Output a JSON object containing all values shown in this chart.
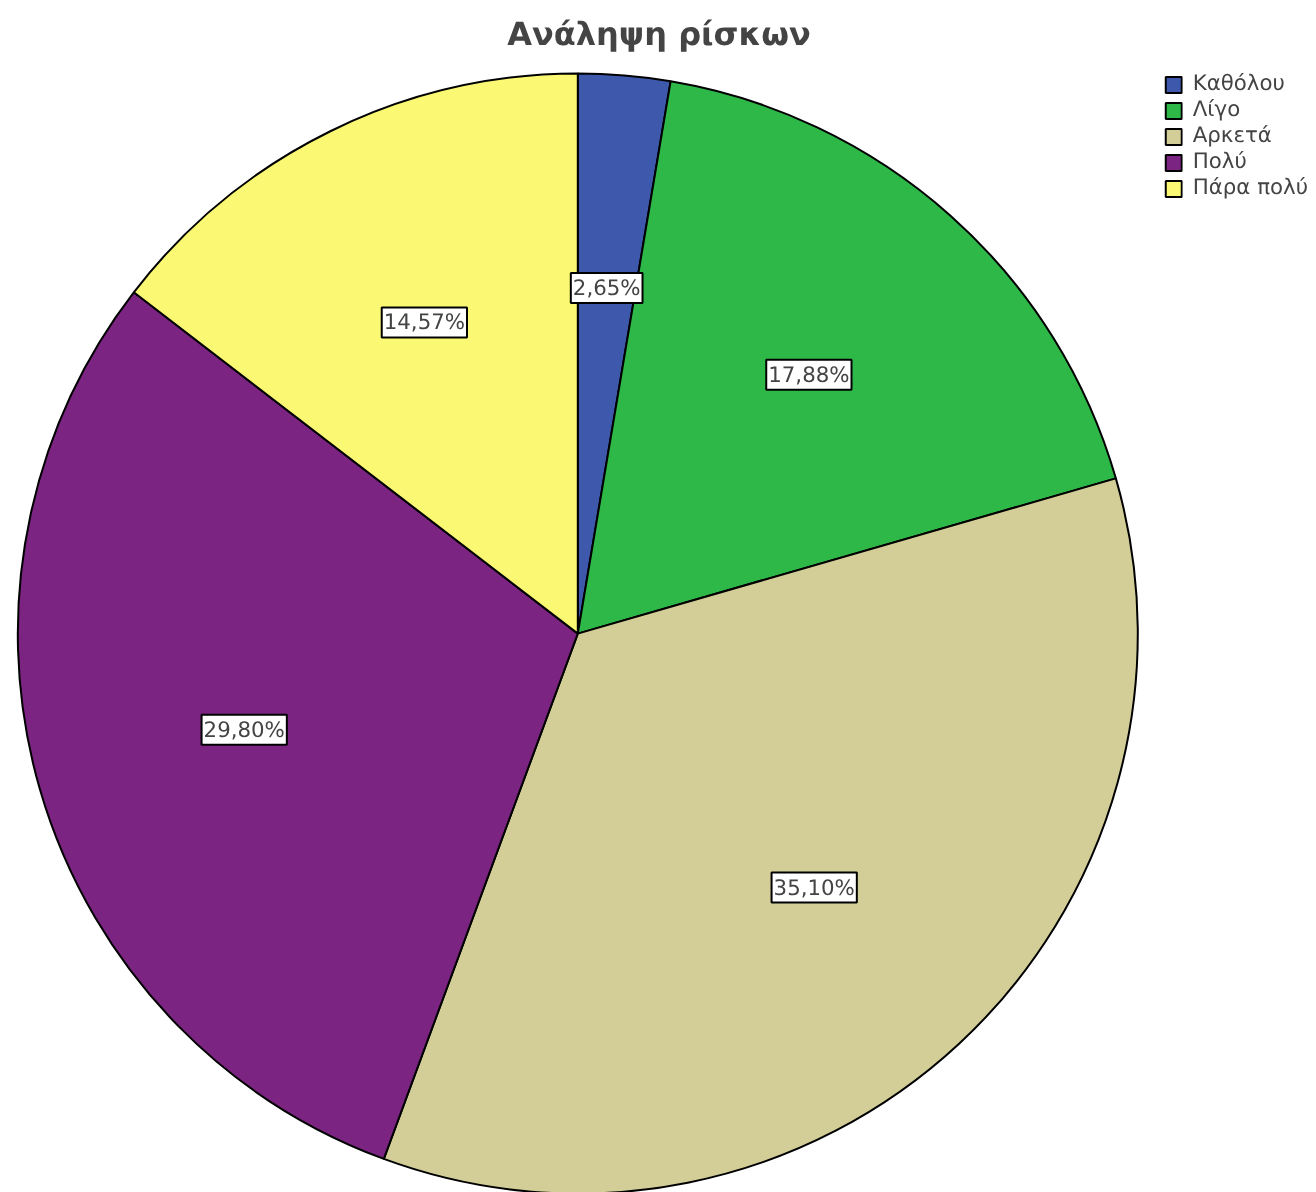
{
  "chart_data": {
    "type": "pie",
    "title": "Ανάληψη ρίσκων",
    "categories": [
      "Καθόλου",
      "Λίγο",
      "Αρκετά",
      "Πολύ",
      "Πάρα πολύ"
    ],
    "values": [
      2.65,
      17.88,
      35.1,
      29.8,
      14.57
    ],
    "value_labels": [
      "2,65%",
      "17,88%",
      "35,10%",
      "29,80%",
      "14,57%"
    ],
    "colors": [
      "#3e58ac",
      "#2eb848",
      "#d3ce97",
      "#7b2481",
      "#fbf873"
    ],
    "legend": "top right"
  }
}
